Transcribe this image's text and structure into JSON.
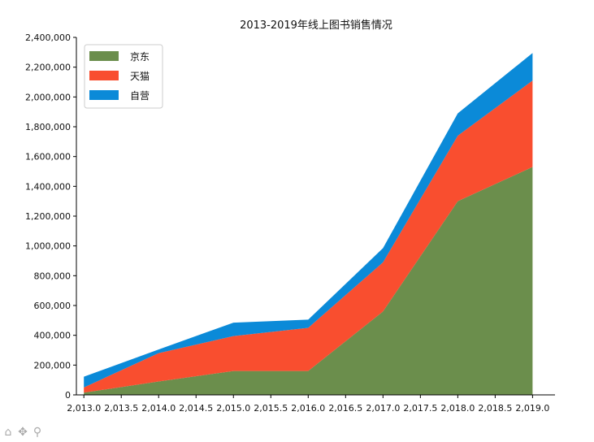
{
  "chart_data": {
    "type": "area",
    "stacked": true,
    "title": "2013-2019年线上图书销售情况",
    "xlabel": "",
    "ylabel": "",
    "x": [
      2013,
      2014,
      2015,
      2016,
      2017,
      2018,
      2019
    ],
    "xlim": [
      2012.9,
      2019.3
    ],
    "ylim": [
      0,
      2400000
    ],
    "x_ticks": [
      "2,013.0",
      "2,013.5",
      "2,014.0",
      "2,014.5",
      "2,015.0",
      "2,015.5",
      "2,016.0",
      "2,016.5",
      "2,017.0",
      "2,017.5",
      "2,018.0",
      "2,018.5",
      "2,019.0"
    ],
    "y_ticks": [
      "0",
      "200,000",
      "400,000",
      "600,000",
      "800,000",
      "1,000,000",
      "1,200,000",
      "1,400,000",
      "1,600,000",
      "1,800,000",
      "2,000,000",
      "2,200,000",
      "2,400,000"
    ],
    "series": [
      {
        "name": "京东",
        "color": "#6b8e4c",
        "values": [
          15000,
          90000,
          160000,
          160000,
          560000,
          1300000,
          1530000
        ]
      },
      {
        "name": "天猫",
        "color": "#f94e2f",
        "values": [
          35000,
          190000,
          235000,
          290000,
          330000,
          440000,
          580000
        ]
      },
      {
        "name": "自营",
        "color": "#0b8ad8",
        "values": [
          72000,
          25000,
          90000,
          55000,
          95000,
          150000,
          185000
        ]
      }
    ],
    "legend_position": "top-left",
    "grid": false
  },
  "toolbar": {
    "icons": [
      "home-icon",
      "pan-icon",
      "zoom-icon"
    ],
    "home_glyph": "⌂",
    "pan_glyph": "✥",
    "zoom_glyph": "⚲"
  }
}
